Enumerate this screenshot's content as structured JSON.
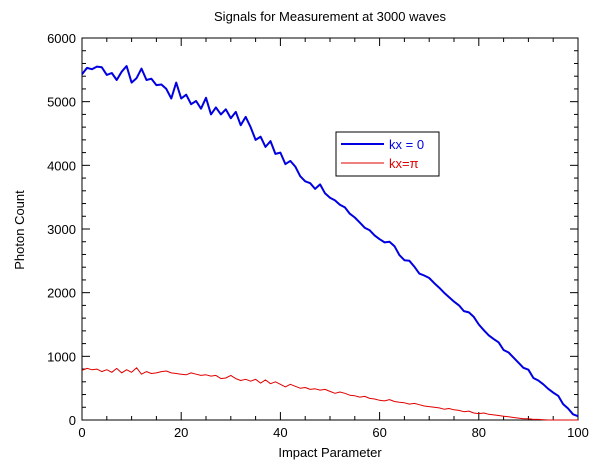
{
  "chart_data": {
    "type": "line",
    "title": "Signals for Measurement at 3000 waves",
    "xlabel": "Impact Parameter",
    "ylabel": "Photon Count",
    "xlim": [
      0,
      100
    ],
    "ylim": [
      0,
      6000
    ],
    "xticks": [
      0,
      20,
      40,
      60,
      80,
      100
    ],
    "yticks": [
      0,
      1000,
      2000,
      3000,
      4000,
      5000,
      6000
    ],
    "grid": false,
    "legend_position": "center-right",
    "series": [
      {
        "name": "kx = 0",
        "color": "#0000e0",
        "x": [
          0,
          1,
          2,
          3,
          4,
          5,
          6,
          7,
          8,
          9,
          10,
          11,
          12,
          13,
          14,
          15,
          16,
          17,
          18,
          19,
          20,
          21,
          22,
          23,
          24,
          25,
          26,
          27,
          28,
          29,
          30,
          31,
          32,
          33,
          34,
          35,
          36,
          37,
          38,
          39,
          40,
          41,
          42,
          43,
          44,
          45,
          46,
          47,
          48,
          49,
          50,
          51,
          52,
          53,
          54,
          55,
          56,
          57,
          58,
          59,
          60,
          61,
          62,
          63,
          64,
          65,
          66,
          67,
          68,
          69,
          70,
          71,
          72,
          73,
          74,
          75,
          76,
          77,
          78,
          79,
          80,
          81,
          82,
          83,
          84,
          85,
          86,
          87,
          88,
          89,
          90,
          91,
          92,
          93,
          94,
          95,
          96,
          97,
          98,
          99,
          100
        ],
        "y": [
          5430,
          5530,
          5510,
          5550,
          5540,
          5420,
          5450,
          5340,
          5470,
          5560,
          5300,
          5370,
          5520,
          5340,
          5360,
          5260,
          5270,
          5200,
          5050,
          5300,
          5050,
          5110,
          4960,
          5010,
          4890,
          5060,
          4800,
          4910,
          4800,
          4880,
          4740,
          4840,
          4630,
          4760,
          4600,
          4400,
          4450,
          4290,
          4380,
          4180,
          4200,
          4020,
          4070,
          3980,
          3830,
          3750,
          3720,
          3630,
          3700,
          3560,
          3490,
          3450,
          3380,
          3340,
          3240,
          3180,
          3100,
          3020,
          2980,
          2900,
          2840,
          2790,
          2800,
          2730,
          2590,
          2510,
          2500,
          2410,
          2300,
          2270,
          2230,
          2150,
          2080,
          2000,
          1930,
          1860,
          1800,
          1710,
          1690,
          1620,
          1500,
          1410,
          1330,
          1270,
          1220,
          1100,
          1060,
          980,
          900,
          820,
          790,
          660,
          620,
          560,
          490,
          430,
          380,
          250,
          180,
          90,
          60
        ]
      },
      {
        "name": "kx=π",
        "color": "#e00000",
        "x": [
          0,
          1,
          2,
          3,
          4,
          5,
          6,
          7,
          8,
          9,
          10,
          11,
          12,
          13,
          14,
          15,
          16,
          17,
          18,
          19,
          20,
          21,
          22,
          23,
          24,
          25,
          26,
          27,
          28,
          29,
          30,
          31,
          32,
          33,
          34,
          35,
          36,
          37,
          38,
          39,
          40,
          41,
          42,
          43,
          44,
          45,
          46,
          47,
          48,
          49,
          50,
          51,
          52,
          53,
          54,
          55,
          56,
          57,
          58,
          59,
          60,
          61,
          62,
          63,
          64,
          65,
          66,
          67,
          68,
          69,
          70,
          71,
          72,
          73,
          74,
          75,
          76,
          77,
          78,
          79,
          80,
          81,
          82,
          83,
          84,
          85,
          86,
          87,
          88,
          89,
          90,
          91,
          92,
          93,
          94,
          95,
          96,
          97,
          98,
          99,
          100
        ],
        "y": [
          780,
          810,
          790,
          800,
          760,
          790,
          750,
          810,
          740,
          790,
          750,
          820,
          720,
          760,
          730,
          740,
          760,
          770,
          740,
          730,
          720,
          710,
          740,
          720,
          700,
          710,
          690,
          700,
          650,
          660,
          700,
          650,
          620,
          640,
          610,
          640,
          580,
          630,
          570,
          600,
          560,
          520,
          560,
          530,
          500,
          510,
          480,
          490,
          470,
          480,
          450,
          420,
          440,
          420,
          390,
          380,
          360,
          370,
          340,
          330,
          310,
          300,
          320,
          290,
          280,
          270,
          250,
          260,
          240,
          220,
          210,
          200,
          190,
          170,
          180,
          160,
          150,
          130,
          140,
          110,
          100,
          110,
          90,
          80,
          70,
          60,
          50,
          40,
          30,
          20,
          20,
          10,
          10,
          5,
          0,
          0,
          0,
          0,
          0,
          0,
          0
        ]
      }
    ]
  }
}
